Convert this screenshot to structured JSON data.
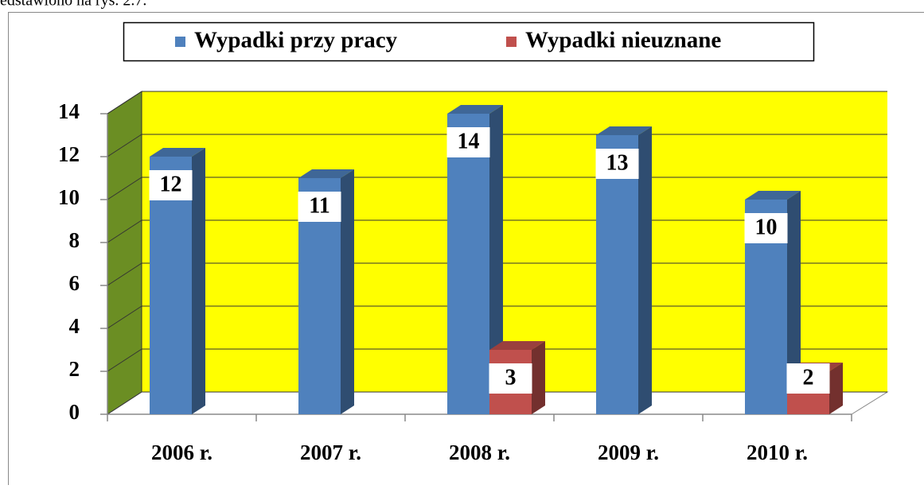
{
  "text_above": "edstawiono na rys. 2.7.",
  "chart_data": {
    "type": "bar3d",
    "categories": [
      "2006 r.",
      "2007 r.",
      "2008 r.",
      "2009 r.",
      "2010 r."
    ],
    "series": [
      {
        "name": "Wypadki przy pracy",
        "color": "#4f81bd",
        "values": [
          12,
          11,
          14,
          13,
          10
        ]
      },
      {
        "name": "Wypadki nieuznane",
        "color": "#c0504d",
        "values": [
          null,
          null,
          3,
          null,
          2
        ]
      }
    ],
    "ylim": [
      0,
      14
    ],
    "yticks": [
      0,
      2,
      4,
      6,
      8,
      10,
      12,
      14
    ],
    "grid": true,
    "wall_color": "#ffff00",
    "side_wall_color": "#6b8e23",
    "legend": "top"
  }
}
